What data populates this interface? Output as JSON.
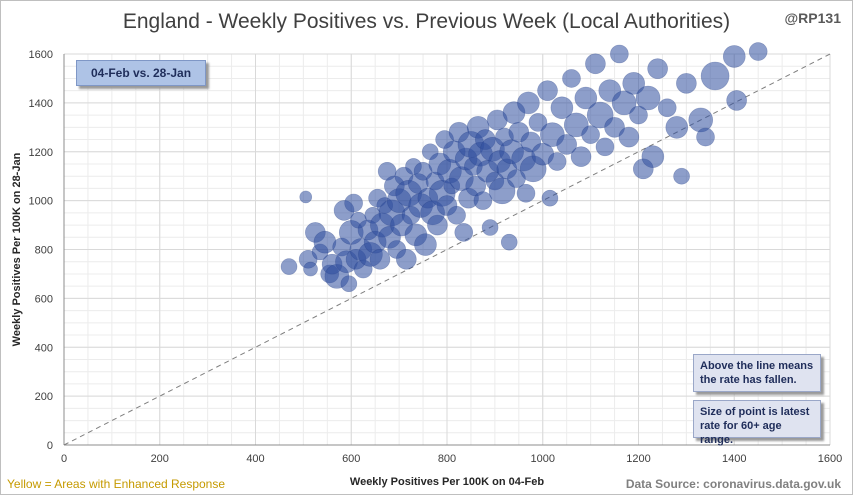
{
  "header": {
    "title": "England - Weekly Positives vs. Previous Week (Local Authorities)",
    "handle": "@RP131"
  },
  "annotations": {
    "period": "04-Feb vs. 28-Jan",
    "note_line": "Above the line means the rate has fallen.",
    "note_size": "Size of point is latest rate for 60+ age range."
  },
  "footer": {
    "left": "Yellow = Areas with Enhanced Response",
    "right": "Data Source: coronavirus.data.gov.uk"
  },
  "colors": {
    "point": "#2f4f9e",
    "grid": "#d9d9d9",
    "diagonal": "#7f7f7f",
    "highlight_text": "#c59a00"
  },
  "chart_data": {
    "type": "scatter",
    "title": "England - Weekly Positives vs. Previous Week (Local Authorities)",
    "xlabel": "Weekly Positives Per 100K on 04-Feb",
    "ylabel": "Weekly Positives Per 100K on 28-Jan",
    "xlim": [
      0,
      1600
    ],
    "ylim": [
      0,
      1600
    ],
    "xticks": [
      0,
      200,
      400,
      600,
      800,
      1000,
      1200,
      1400,
      1600
    ],
    "yticks": [
      0,
      200,
      400,
      600,
      800,
      1000,
      1200,
      1400,
      1600
    ],
    "grid": true,
    "reference_line": "y = x",
    "point_size_meaning": "latest rate for 60+ age range",
    "points": [
      {
        "x": 470,
        "y": 730,
        "s": 8
      },
      {
        "x": 505,
        "y": 1015,
        "s": 6
      },
      {
        "x": 510,
        "y": 760,
        "s": 9
      },
      {
        "x": 515,
        "y": 720,
        "s": 7
      },
      {
        "x": 525,
        "y": 870,
        "s": 10
      },
      {
        "x": 535,
        "y": 790,
        "s": 8
      },
      {
        "x": 545,
        "y": 830,
        "s": 11
      },
      {
        "x": 555,
        "y": 700,
        "s": 9
      },
      {
        "x": 560,
        "y": 740,
        "s": 10
      },
      {
        "x": 570,
        "y": 690,
        "s": 12
      },
      {
        "x": 580,
        "y": 810,
        "s": 9
      },
      {
        "x": 585,
        "y": 960,
        "s": 10
      },
      {
        "x": 590,
        "y": 750,
        "s": 11
      },
      {
        "x": 595,
        "y": 660,
        "s": 8
      },
      {
        "x": 600,
        "y": 870,
        "s": 12
      },
      {
        "x": 605,
        "y": 990,
        "s": 9
      },
      {
        "x": 610,
        "y": 760,
        "s": 10
      },
      {
        "x": 615,
        "y": 920,
        "s": 8
      },
      {
        "x": 620,
        "y": 800,
        "s": 11
      },
      {
        "x": 625,
        "y": 720,
        "s": 9
      },
      {
        "x": 635,
        "y": 880,
        "s": 10
      },
      {
        "x": 640,
        "y": 780,
        "s": 12
      },
      {
        "x": 645,
        "y": 940,
        "s": 8
      },
      {
        "x": 650,
        "y": 830,
        "s": 11
      },
      {
        "x": 655,
        "y": 1010,
        "s": 9
      },
      {
        "x": 660,
        "y": 760,
        "s": 10
      },
      {
        "x": 665,
        "y": 900,
        "s": 12
      },
      {
        "x": 670,
        "y": 980,
        "s": 8
      },
      {
        "x": 675,
        "y": 1120,
        "s": 9
      },
      {
        "x": 680,
        "y": 850,
        "s": 11
      },
      {
        "x": 685,
        "y": 950,
        "s": 13
      },
      {
        "x": 690,
        "y": 1060,
        "s": 10
      },
      {
        "x": 695,
        "y": 800,
        "s": 9
      },
      {
        "x": 700,
        "y": 1000,
        "s": 12
      },
      {
        "x": 705,
        "y": 900,
        "s": 11
      },
      {
        "x": 710,
        "y": 1100,
        "s": 9
      },
      {
        "x": 715,
        "y": 760,
        "s": 10
      },
      {
        "x": 720,
        "y": 1030,
        "s": 13
      },
      {
        "x": 725,
        "y": 940,
        "s": 9
      },
      {
        "x": 730,
        "y": 1140,
        "s": 8
      },
      {
        "x": 735,
        "y": 860,
        "s": 11
      },
      {
        "x": 740,
        "y": 1070,
        "s": 10
      },
      {
        "x": 745,
        "y": 980,
        "s": 12
      },
      {
        "x": 750,
        "y": 1120,
        "s": 9
      },
      {
        "x": 755,
        "y": 820,
        "s": 11
      },
      {
        "x": 760,
        "y": 1010,
        "s": 10
      },
      {
        "x": 765,
        "y": 1200,
        "s": 8
      },
      {
        "x": 770,
        "y": 950,
        "s": 12
      },
      {
        "x": 775,
        "y": 1080,
        "s": 9
      },
      {
        "x": 780,
        "y": 900,
        "s": 10
      },
      {
        "x": 785,
        "y": 1150,
        "s": 11
      },
      {
        "x": 790,
        "y": 1030,
        "s": 13
      },
      {
        "x": 795,
        "y": 1250,
        "s": 9
      },
      {
        "x": 800,
        "y": 980,
        "s": 10
      },
      {
        "x": 805,
        "y": 1120,
        "s": 12
      },
      {
        "x": 810,
        "y": 1060,
        "s": 8
      },
      {
        "x": 815,
        "y": 1200,
        "s": 11
      },
      {
        "x": 820,
        "y": 940,
        "s": 9
      },
      {
        "x": 825,
        "y": 1280,
        "s": 10
      },
      {
        "x": 830,
        "y": 1090,
        "s": 12
      },
      {
        "x": 835,
        "y": 870,
        "s": 9
      },
      {
        "x": 840,
        "y": 1170,
        "s": 11
      },
      {
        "x": 845,
        "y": 1010,
        "s": 10
      },
      {
        "x": 850,
        "y": 1230,
        "s": 13
      },
      {
        "x": 855,
        "y": 1140,
        "s": 9
      },
      {
        "x": 860,
        "y": 1060,
        "s": 10
      },
      {
        "x": 865,
        "y": 1300,
        "s": 11
      },
      {
        "x": 870,
        "y": 1190,
        "s": 12
      },
      {
        "x": 875,
        "y": 1000,
        "s": 9
      },
      {
        "x": 880,
        "y": 1250,
        "s": 10
      },
      {
        "x": 885,
        "y": 1120,
        "s": 11
      },
      {
        "x": 890,
        "y": 890,
        "s": 8
      },
      {
        "x": 895,
        "y": 1210,
        "s": 12
      },
      {
        "x": 900,
        "y": 1080,
        "s": 9
      },
      {
        "x": 905,
        "y": 1330,
        "s": 10
      },
      {
        "x": 910,
        "y": 1160,
        "s": 11
      },
      {
        "x": 915,
        "y": 1040,
        "s": 13
      },
      {
        "x": 920,
        "y": 1260,
        "s": 9
      },
      {
        "x": 925,
        "y": 1130,
        "s": 10
      },
      {
        "x": 930,
        "y": 830,
        "s": 8
      },
      {
        "x": 935,
        "y": 1200,
        "s": 12
      },
      {
        "x": 940,
        "y": 1360,
        "s": 11
      },
      {
        "x": 945,
        "y": 1090,
        "s": 9
      },
      {
        "x": 950,
        "y": 1280,
        "s": 10
      },
      {
        "x": 960,
        "y": 1170,
        "s": 12
      },
      {
        "x": 965,
        "y": 1030,
        "s": 9
      },
      {
        "x": 970,
        "y": 1400,
        "s": 11
      },
      {
        "x": 975,
        "y": 1240,
        "s": 10
      },
      {
        "x": 980,
        "y": 1130,
        "s": 13
      },
      {
        "x": 990,
        "y": 1320,
        "s": 9
      },
      {
        "x": 1000,
        "y": 1190,
        "s": 11
      },
      {
        "x": 1010,
        "y": 1450,
        "s": 10
      },
      {
        "x": 1015,
        "y": 1010,
        "s": 8
      },
      {
        "x": 1020,
        "y": 1270,
        "s": 12
      },
      {
        "x": 1030,
        "y": 1160,
        "s": 9
      },
      {
        "x": 1040,
        "y": 1380,
        "s": 11
      },
      {
        "x": 1050,
        "y": 1230,
        "s": 10
      },
      {
        "x": 1060,
        "y": 1500,
        "s": 9
      },
      {
        "x": 1070,
        "y": 1310,
        "s": 12
      },
      {
        "x": 1080,
        "y": 1180,
        "s": 10
      },
      {
        "x": 1090,
        "y": 1420,
        "s": 11
      },
      {
        "x": 1100,
        "y": 1270,
        "s": 9
      },
      {
        "x": 1110,
        "y": 1560,
        "s": 10
      },
      {
        "x": 1120,
        "y": 1350,
        "s": 13
      },
      {
        "x": 1130,
        "y": 1220,
        "s": 9
      },
      {
        "x": 1140,
        "y": 1450,
        "s": 11
      },
      {
        "x": 1150,
        "y": 1300,
        "s": 10
      },
      {
        "x": 1160,
        "y": 1600,
        "s": 9
      },
      {
        "x": 1170,
        "y": 1400,
        "s": 12
      },
      {
        "x": 1180,
        "y": 1260,
        "s": 10
      },
      {
        "x": 1190,
        "y": 1480,
        "s": 11
      },
      {
        "x": 1200,
        "y": 1350,
        "s": 9
      },
      {
        "x": 1210,
        "y": 1130,
        "s": 10
      },
      {
        "x": 1220,
        "y": 1420,
        "s": 12
      },
      {
        "x": 1230,
        "y": 1180,
        "s": 11
      },
      {
        "x": 1240,
        "y": 1540,
        "s": 10
      },
      {
        "x": 1260,
        "y": 1380,
        "s": 9
      },
      {
        "x": 1280,
        "y": 1300,
        "s": 11
      },
      {
        "x": 1290,
        "y": 1100,
        "s": 8
      },
      {
        "x": 1300,
        "y": 1480,
        "s": 10
      },
      {
        "x": 1330,
        "y": 1330,
        "s": 12
      },
      {
        "x": 1340,
        "y": 1260,
        "s": 9
      },
      {
        "x": 1360,
        "y": 1510,
        "s": 14
      },
      {
        "x": 1400,
        "y": 1590,
        "s": 11
      },
      {
        "x": 1405,
        "y": 1410,
        "s": 10
      },
      {
        "x": 1450,
        "y": 1610,
        "s": 9
      }
    ]
  }
}
